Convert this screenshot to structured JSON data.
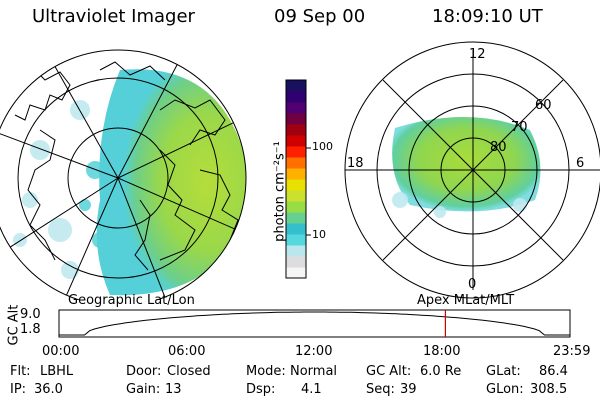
{
  "header": {
    "instrument": "Ultraviolet Imager",
    "date": "09 Sep 00",
    "time": "18:09:10 UT"
  },
  "geo_panel": {
    "caption": "Geographic Lat/Lon"
  },
  "polar_panel": {
    "caption": "Apex MLat/MLT",
    "mlt_labels": [
      "12",
      "18",
      "6",
      "0"
    ],
    "lat_labels": [
      "60",
      "70",
      "80"
    ]
  },
  "colorbar": {
    "unit_label": "photon cm⁻²s⁻¹",
    "tick_labels": [
      "100",
      "10"
    ],
    "colors": [
      "#f5f5f5",
      "#dddddd",
      "#bbe6ee",
      "#55d8dd",
      "#33c0cc",
      "#66d090",
      "#99dd44",
      "#cce030",
      "#e8e000",
      "#ffb000",
      "#ff7000",
      "#ff2000",
      "#d00000",
      "#a00010",
      "#700040",
      "#500070",
      "#300070",
      "#1a1060"
    ]
  },
  "timeline": {
    "axis_title": "GC Alt",
    "y_ticks": [
      "9.0",
      "1.8"
    ],
    "x_ticks": [
      "00:00",
      "06:00",
      "12:00",
      "18:00",
      "23:59"
    ],
    "current_time_hours": 18.15
  },
  "footer": {
    "row1": {
      "flt_label": "Flt:",
      "flt_value": "LBHL",
      "door_label": "Door:",
      "door_value": "Closed",
      "mode_label": "Mode:",
      "mode_value": "Normal",
      "gcalt_label": "GC Alt:",
      "gcalt_value": "6.0 Re",
      "glat_label": "GLat:",
      "glat_value": "86.4"
    },
    "row2": {
      "ip_label": "IP:",
      "ip_value": "36.0",
      "gain_label": "Gain:",
      "gain_value": "13",
      "dsp_label": "Dsp:",
      "dsp_value": "4.1",
      "seq_label": "Seq:",
      "seq_value": "39",
      "glon_label": "GLon:",
      "glon_value": "308.5"
    }
  }
}
